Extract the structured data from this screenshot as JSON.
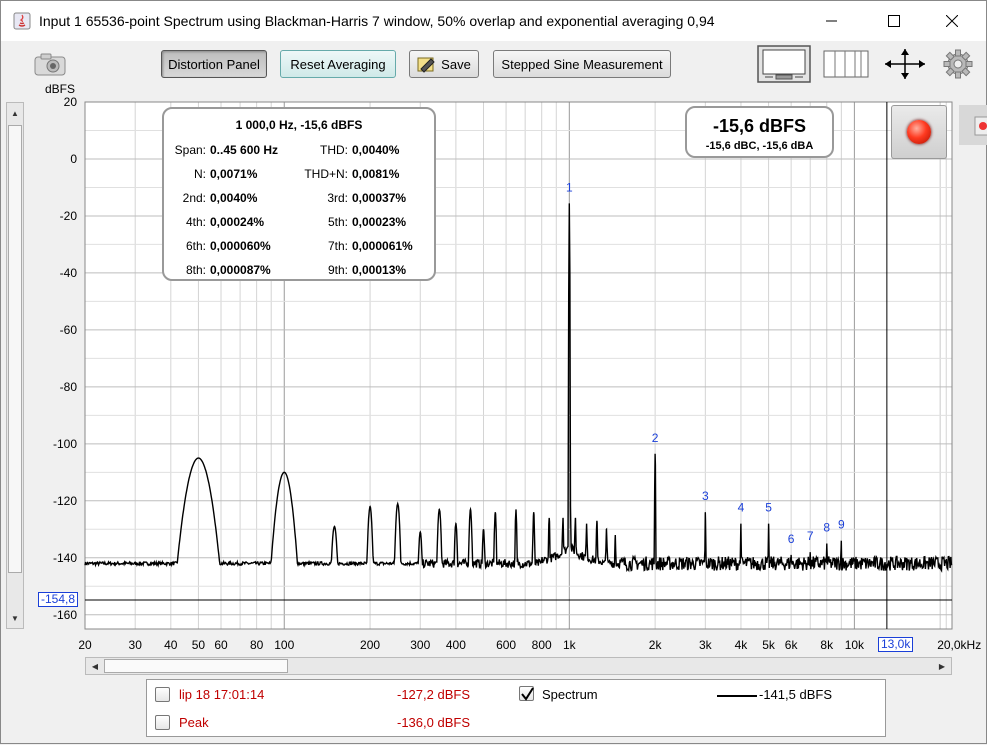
{
  "window": {
    "title": "Input 1 65536-point Spectrum using Blackman-Harris 7 window, 50% overlap and exponential averaging 0,94"
  },
  "toolbar": {
    "distortion_panel": "Distortion Panel",
    "reset_averaging": "Reset Averaging",
    "save": "Save",
    "stepped_sine": "Stepped Sine Measurement"
  },
  "info": {
    "header": "1 000,0 Hz, -15,6 dBFS",
    "span_label": "Span:",
    "span_value": "0..45 600 Hz",
    "thd_label": "THD:",
    "thd_value": "0,0040%",
    "n_label": "N:",
    "n_value": "0,0071%",
    "thdn_label": "THD+N:",
    "thdn_value": "0,0081%",
    "h2_label": "2nd:",
    "h2_value": "0,0040%",
    "h3_label": "3rd:",
    "h3_value": "0,00037%",
    "h4_label": "4th:",
    "h4_value": "0,00024%",
    "h5_label": "5th:",
    "h5_value": "0,00023%",
    "h6_label": "6th:",
    "h6_value": "0,000060%",
    "h7_label": "7th:",
    "h7_value": "0,000061%",
    "h8_label": "8th:",
    "h8_value": "0,000087%",
    "h9_label": "9th:",
    "h9_value": "0,00013%"
  },
  "level": {
    "main": "-15,6 dBFS",
    "sub": "-15,6 dBC, -15,6 dBA"
  },
  "cursors": {
    "y_value": "-154,8",
    "x_value": "13,0k"
  },
  "legend": {
    "row1_name": "lip 18 17:01:14",
    "row1_value": "-127,2 dBFS",
    "row2_name": "Peak",
    "row2_value": "-136,0 dBFS",
    "spectrum_name": "Spectrum",
    "spectrum_value": "-141,5 dBFS",
    "spectrum_checked": true
  },
  "colors": {
    "accent_red": "#c00000",
    "marker_blue": "#1a3fd8",
    "trace": "#000000"
  },
  "chart_data": {
    "type": "line",
    "title": "",
    "ylabel": "dBFS",
    "xlabel": "",
    "xscale": "log",
    "xlim": [
      20,
      22000
    ],
    "ylim": [
      -165,
      20
    ],
    "y_ticks": [
      20,
      0,
      -20,
      -40,
      -60,
      -80,
      -100,
      -120,
      -140,
      -160
    ],
    "x_ticks": [
      {
        "v": 20,
        "label": "20"
      },
      {
        "v": 30,
        "label": "30"
      },
      {
        "v": 40,
        "label": "40"
      },
      {
        "v": 50,
        "label": "50"
      },
      {
        "v": 60,
        "label": "60"
      },
      {
        "v": 80,
        "label": "80"
      },
      {
        "v": 100,
        "label": "100"
      },
      {
        "v": 200,
        "label": "200"
      },
      {
        "v": 300,
        "label": "300"
      },
      {
        "v": 400,
        "label": "400"
      },
      {
        "v": 600,
        "label": "600"
      },
      {
        "v": 800,
        "label": "800"
      },
      {
        "v": 1000,
        "label": "1k"
      },
      {
        "v": 2000,
        "label": "2k"
      },
      {
        "v": 3000,
        "label": "3k"
      },
      {
        "v": 4000,
        "label": "4k"
      },
      {
        "v": 5000,
        "label": "5k"
      },
      {
        "v": 6000,
        "label": "6k"
      },
      {
        "v": 8000,
        "label": "8k"
      },
      {
        "v": 10000,
        "label": "10k"
      },
      {
        "v": 20000,
        "label": "20,0kHz"
      }
    ],
    "grid": true,
    "noise_floor_db": -142,
    "cursor_x": 13000,
    "cursor_y": -154.8,
    "series": [
      {
        "peaks": [
          {
            "f": 50,
            "db": -105,
            "w": 0.06
          },
          {
            "f": 100,
            "db": -110,
            "w": 0.04
          },
          {
            "f": 150,
            "db": -129,
            "w": 0.015
          },
          {
            "f": 200,
            "db": -122,
            "w": 0.012
          },
          {
            "f": 250,
            "db": -121,
            "w": 0.012
          },
          {
            "f": 300,
            "db": -131,
            "w": 0.01
          },
          {
            "f": 350,
            "db": -123,
            "w": 0.01
          },
          {
            "f": 400,
            "db": -128,
            "w": 0.008
          },
          {
            "f": 450,
            "db": -123,
            "w": 0.008
          },
          {
            "f": 500,
            "db": -130,
            "w": 0.007
          },
          {
            "f": 550,
            "db": -124,
            "w": 0.006
          },
          {
            "f": 650,
            "db": -123,
            "w": 0.005
          },
          {
            "f": 750,
            "db": -124,
            "w": 0.005
          },
          {
            "f": 850,
            "db": -126,
            "w": 0.004
          },
          {
            "f": 950,
            "db": -126,
            "w": 0.004
          },
          {
            "f": 1000,
            "db": -15.6,
            "w": 0.002
          },
          {
            "f": 1050,
            "db": -126,
            "w": 0.004
          },
          {
            "f": 1150,
            "db": -128,
            "w": 0.004
          },
          {
            "f": 1250,
            "db": -127,
            "w": 0.004
          },
          {
            "f": 1350,
            "db": -130,
            "w": 0.004
          },
          {
            "f": 1450,
            "db": -132,
            "w": 0.003
          },
          {
            "f": 2000,
            "db": -103.5,
            "w": 0.002
          },
          {
            "f": 3000,
            "db": -124,
            "w": 0.002
          },
          {
            "f": 4000,
            "db": -128,
            "w": 0.002
          },
          {
            "f": 5000,
            "db": -128,
            "w": 0.002
          },
          {
            "f": 6000,
            "db": -139,
            "w": 0.002
          },
          {
            "f": 7000,
            "db": -138,
            "w": 0.002
          },
          {
            "f": 8000,
            "db": -135,
            "w": 0.002
          },
          {
            "f": 9000,
            "db": -134,
            "w": 0.002
          }
        ]
      }
    ],
    "harmonic_labels": [
      {
        "n": "1",
        "f": 1000,
        "db": -15.6
      },
      {
        "n": "2",
        "f": 2000,
        "db": -103.5
      },
      {
        "n": "3",
        "f": 3000,
        "db": -124
      },
      {
        "n": "4",
        "f": 4000,
        "db": -128
      },
      {
        "n": "5",
        "f": 5000,
        "db": -128
      },
      {
        "n": "6",
        "f": 6000,
        "db": -139
      },
      {
        "n": "7",
        "f": 7000,
        "db": -138
      },
      {
        "n": "8",
        "f": 8000,
        "db": -135
      },
      {
        "n": "9",
        "f": 9000,
        "db": -134
      }
    ]
  }
}
